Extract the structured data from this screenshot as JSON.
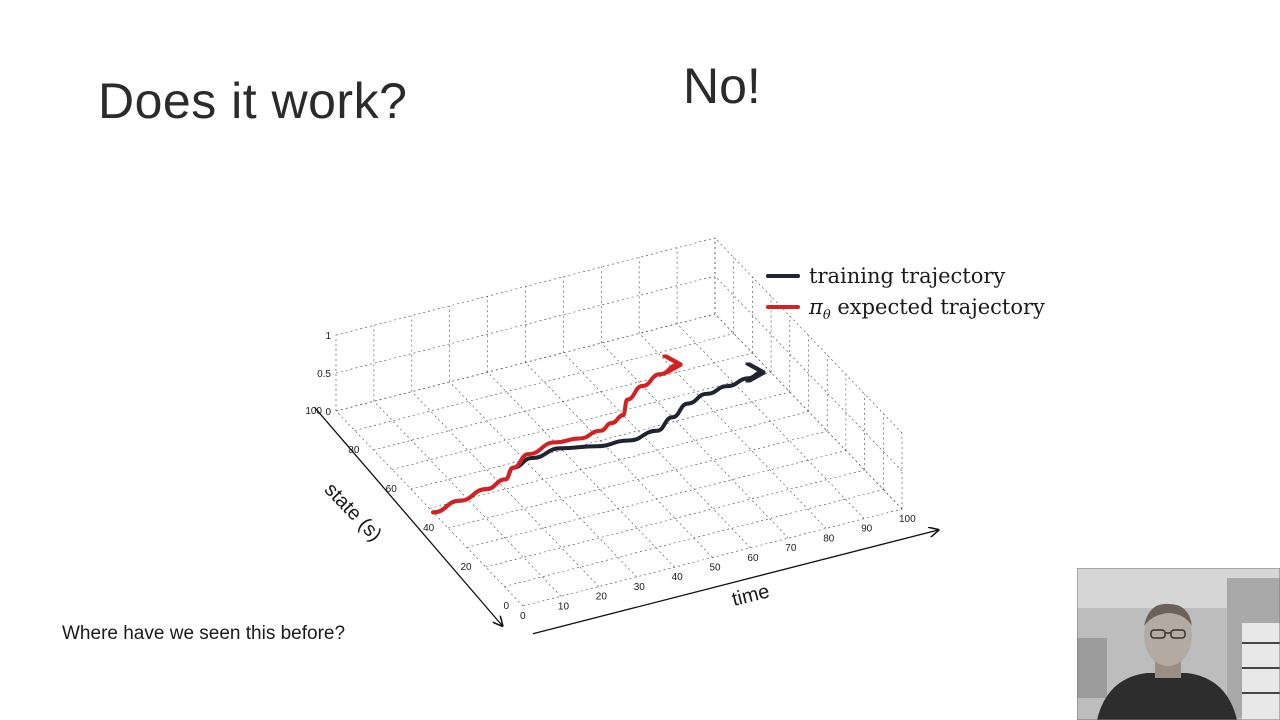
{
  "slide": {
    "title": "Does it work?",
    "answer": "No!",
    "question": "Where have we seen this before?"
  },
  "chart_data": {
    "type": "line",
    "xlabel": "time",
    "ylabel": "state (s)",
    "x_ticks": [
      "0",
      "10",
      "20",
      "30",
      "40",
      "50",
      "60",
      "70",
      "80",
      "90",
      "100"
    ],
    "y_ticks": [
      "0",
      "20",
      "40",
      "60",
      "80",
      "100"
    ],
    "z_ticks": [
      "0",
      "0.5",
      "1"
    ],
    "xlim": [
      0,
      100
    ],
    "ylim": [
      0,
      100
    ],
    "zlim": [
      0,
      1
    ],
    "grid": true,
    "legend_position": "top-right",
    "series": [
      {
        "name": "training trajectory",
        "color": "#1f2430",
        "x": [
          0,
          8,
          16,
          22,
          26,
          32,
          40,
          48,
          56,
          64,
          70,
          76,
          82,
          88,
          94,
          98
        ],
        "y": [
          48,
          50,
          52,
          54,
          58,
          60,
          61,
          58,
          57,
          58,
          62,
          66,
          68,
          69,
          70,
          71
        ]
      },
      {
        "name": "πθ expected trajectory",
        "legend_prefix": "π",
        "legend_sub": "θ",
        "legend_suffix": " expected trajectory",
        "color": "#d42020",
        "x": [
          0,
          8,
          16,
          22,
          26,
          32,
          40,
          46,
          52,
          56,
          60,
          64,
          70,
          76,
          82
        ],
        "y": [
          48,
          50,
          52,
          54,
          58,
          62,
          64,
          63,
          64,
          66,
          68,
          74,
          78,
          81,
          83
        ]
      }
    ]
  },
  "webcam": {
    "label": "presenter webcam"
  }
}
